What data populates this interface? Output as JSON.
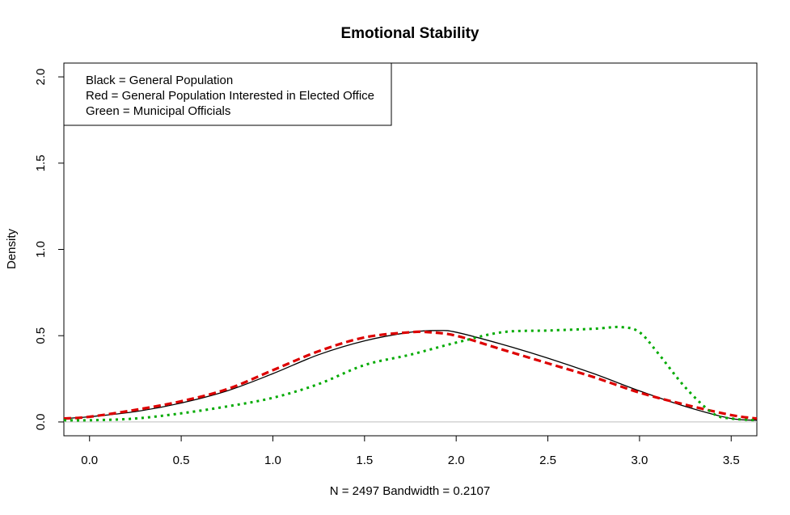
{
  "chart_data": {
    "type": "line",
    "title": "Emotional Stability",
    "xlabel": "N = 2497   Bandwidth = 0.2107",
    "ylabel": "Density",
    "xlim": [
      -0.14,
      3.64
    ],
    "ylim": [
      -0.08,
      2.08
    ],
    "x_ticks": [
      "0.0",
      "0.5",
      "1.0",
      "1.5",
      "2.0",
      "2.5",
      "3.0",
      "3.5"
    ],
    "y_ticks": [
      "0.0",
      "0.5",
      "1.0",
      "1.5",
      "2.0"
    ],
    "baseline": 0,
    "baseline_color": "#bebebe",
    "legend": {
      "position": "top-left",
      "entries": [
        "Black = General Population",
        "Red = General Population Interested in Elected Office",
        "Green = Municipal Officials"
      ]
    },
    "series": [
      {
        "color": "#000000",
        "style": "solid",
        "x": [
          -0.14,
          0.0,
          0.25,
          0.5,
          0.75,
          1.0,
          1.25,
          1.5,
          1.75,
          1.9,
          2.0,
          2.25,
          2.5,
          2.75,
          3.0,
          3.25,
          3.5,
          3.64
        ],
        "y": [
          0.02,
          0.03,
          0.06,
          0.11,
          0.18,
          0.28,
          0.39,
          0.47,
          0.52,
          0.53,
          0.52,
          0.45,
          0.37,
          0.28,
          0.18,
          0.09,
          0.02,
          0.01
        ]
      },
      {
        "color": "#dd0000",
        "style": "dashed",
        "x": [
          -0.14,
          0.0,
          0.25,
          0.5,
          0.75,
          1.0,
          1.25,
          1.5,
          1.75,
          1.85,
          2.0,
          2.25,
          2.5,
          2.75,
          3.0,
          3.25,
          3.5,
          3.64
        ],
        "y": [
          0.02,
          0.03,
          0.07,
          0.12,
          0.19,
          0.3,
          0.41,
          0.49,
          0.52,
          0.52,
          0.5,
          0.42,
          0.34,
          0.26,
          0.17,
          0.1,
          0.04,
          0.02
        ]
      },
      {
        "color": "#00aa00",
        "style": "dotted",
        "x": [
          -0.14,
          0.0,
          0.25,
          0.5,
          0.75,
          1.0,
          1.25,
          1.5,
          1.75,
          2.0,
          2.25,
          2.5,
          2.75,
          2.9,
          3.0,
          3.1,
          3.25,
          3.4,
          3.5,
          3.64
        ],
        "y": [
          0.01,
          0.01,
          0.02,
          0.05,
          0.09,
          0.14,
          0.22,
          0.33,
          0.39,
          0.46,
          0.52,
          0.53,
          0.54,
          0.55,
          0.52,
          0.4,
          0.2,
          0.05,
          0.02,
          0.01
        ]
      }
    ]
  }
}
